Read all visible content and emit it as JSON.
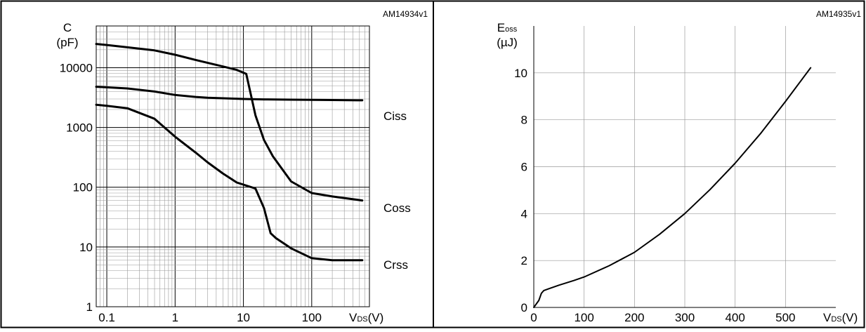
{
  "chart_data": [
    {
      "type": "line",
      "code": "AM14934v1",
      "ylabel_main": "C",
      "ylabel_unit": "(pF)",
      "xlabel_main": "V",
      "xlabel_sub": "DS",
      "xlabel_unit": "(V)",
      "x_scale": "log",
      "y_scale": "log",
      "xlim": [
        0.07,
        700
      ],
      "ylim": [
        1,
        50000
      ],
      "grid": true,
      "x_ticks": [
        0.1,
        1,
        10,
        100
      ],
      "x_tick_labels": [
        "0.1",
        "1",
        "10",
        "100"
      ],
      "y_ticks": [
        1,
        10,
        100,
        1000,
        10000
      ],
      "y_tick_labels": [
        "1",
        "10",
        "100",
        "1000",
        "10000"
      ],
      "series": [
        {
          "name": "Ciss",
          "x": [
            0.07,
            0.1,
            0.2,
            0.5,
            1,
            2,
            3,
            5,
            10,
            20,
            50,
            100,
            200,
            550
          ],
          "y": [
            4800,
            4700,
            4500,
            4000,
            3500,
            3250,
            3150,
            3080,
            3000,
            2950,
            2920,
            2900,
            2880,
            2850
          ]
        },
        {
          "name": "Coss",
          "x": [
            0.07,
            0.1,
            0.2,
            0.5,
            1,
            2,
            5,
            8,
            11,
            15,
            20,
            27,
            50,
            100,
            200,
            550
          ],
          "y": [
            25000,
            24000,
            22000,
            19500,
            16500,
            13500,
            10500,
            9200,
            7900,
            1600,
            620,
            330,
            125,
            80,
            70,
            60
          ]
        },
        {
          "name": "Crss",
          "x": [
            0.07,
            0.1,
            0.2,
            0.5,
            1,
            2,
            3,
            5,
            8,
            15,
            20,
            25,
            30,
            50,
            100,
            200,
            550
          ],
          "y": [
            2400,
            2300,
            2100,
            1400,
            700,
            380,
            260,
            170,
            120,
            95,
            45,
            17,
            14,
            9.5,
            6.5,
            6.0,
            6.0
          ]
        }
      ]
    },
    {
      "type": "line",
      "code": "AM14935v1",
      "ylabel_main": "E",
      "ylabel_sub": "oss",
      "ylabel_unit": "(µJ)",
      "xlabel_main": "V",
      "xlabel_sub": "DS",
      "xlabel_unit": "(V)",
      "xlim": [
        0,
        600
      ],
      "ylim": [
        0,
        12
      ],
      "grid": true,
      "x_ticks": [
        0,
        100,
        200,
        300,
        400,
        500
      ],
      "x_tick_labels": [
        "0",
        "100",
        "200",
        "300",
        "400",
        "500"
      ],
      "y_ticks": [
        0,
        2,
        4,
        6,
        8,
        10
      ],
      "y_tick_labels": [
        "0",
        "2",
        "4",
        "6",
        "8",
        "10"
      ],
      "series": [
        {
          "x": [
            0,
            10,
            15,
            20,
            30,
            50,
            80,
            100,
            150,
            200,
            250,
            300,
            350,
            400,
            450,
            500,
            550
          ],
          "y": [
            0,
            0.3,
            0.6,
            0.72,
            0.8,
            0.95,
            1.15,
            1.3,
            1.78,
            2.35,
            3.12,
            4.0,
            5.02,
            6.15,
            7.4,
            8.78,
            10.22
          ]
        }
      ]
    }
  ]
}
